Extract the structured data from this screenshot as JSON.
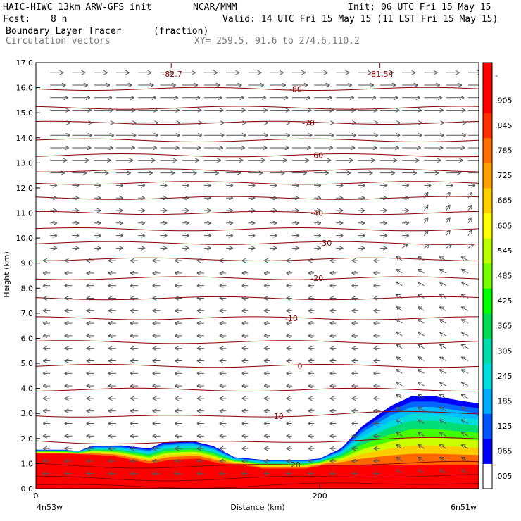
{
  "header": {
    "model": "HAIC-HIWC 13km ARW-GFS init",
    "org": "NCAR/MMM",
    "init": "Init: 06 UTC Fri 15 May 15",
    "fcst_label": "Fcst:",
    "fcst_value": "8 h",
    "valid": "Valid: 14 UTC Fri 15 May 15 (11 LST Fri 15 May 15)",
    "field1": "Boundary Layer Tracer",
    "field1_units": "(fraction)",
    "field2": "Circulation vectors",
    "xy": "XY= 259.5, 91.6 to 274.6,110.2"
  },
  "chart_data": {
    "type": "heatmap",
    "ylabel": "Height (km)",
    "xlabel": "Distance (km)",
    "x_left_label": "4n53w",
    "x_right_label": "6n51w",
    "ylim": [
      0,
      17
    ],
    "xlim": [
      0,
      312
    ],
    "y_ticks": [
      "0.0",
      "1.0",
      "2.0",
      "3.0",
      "4.0",
      "5.0",
      "6.0",
      "7.0",
      "8.0",
      "9.0",
      "10.0",
      "11.0",
      "12.0",
      "13.0",
      "14.0",
      "15.0",
      "16.0",
      "17.0"
    ],
    "x_ticks": [
      {
        "value": 0,
        "label": "0"
      },
      {
        "value": 200,
        "label": "200"
      }
    ],
    "colorbar": {
      "labels": [
        ".005",
        ".065",
        ".125",
        ".185",
        ".245",
        ".305",
        ".365",
        ".425",
        ".485",
        ".545",
        ".605",
        ".665",
        ".725",
        ".785",
        ".845",
        ".905",
        "-"
      ],
      "colors": [
        "#ffffff",
        "#0000ff",
        "#0055ff",
        "#00aaff",
        "#00dddd",
        "#00ddaa",
        "#00dd55",
        "#00ff00",
        "#77ff00",
        "#bbff00",
        "#ffff00",
        "#ffd000",
        "#ffa000",
        "#ff7000",
        "#ff3000",
        "#ff0000",
        "#ff0000"
      ]
    },
    "temperature_labels": [
      {
        "label": "-80",
        "x": 183,
        "y": 15.95
      },
      {
        "label": "-70",
        "x": 192,
        "y": 14.6
      },
      {
        "label": "-60",
        "x": 198,
        "y": 13.3
      },
      {
        "label": "-40",
        "x": 198,
        "y": 11.0
      },
      {
        "label": "-30",
        "x": 204,
        "y": 9.8
      },
      {
        "label": "-20",
        "x": 198,
        "y": 8.4
      },
      {
        "label": "-10",
        "x": 180,
        "y": 6.8
      },
      {
        "label": "0",
        "x": 186,
        "y": 4.9
      },
      {
        "label": "10",
        "x": 171,
        "y": 2.9
      },
      {
        "label": "20",
        "x": 183,
        "y": 0.95
      }
    ],
    "min_labels": [
      {
        "label": "-82.7",
        "x": 96,
        "y": 16.6
      },
      {
        "label": "-81.54",
        "x": 243,
        "y": 16.6
      }
    ],
    "tracer_top_km": [
      [
        0,
        1.55
      ],
      [
        20,
        1.55
      ],
      [
        30,
        1.5
      ],
      [
        40,
        1.7
      ],
      [
        60,
        1.72
      ],
      [
        80,
        1.6
      ],
      [
        90,
        1.85
      ],
      [
        110,
        1.9
      ],
      [
        125,
        1.7
      ],
      [
        140,
        1.25
      ],
      [
        160,
        1.15
      ],
      [
        190,
        1.15
      ],
      [
        200,
        1.2
      ],
      [
        215,
        1.6
      ],
      [
        230,
        2.5
      ],
      [
        250,
        3.3
      ],
      [
        265,
        3.7
      ],
      [
        280,
        3.7
      ],
      [
        300,
        3.5
      ],
      [
        312,
        3.4
      ]
    ],
    "tracer_core_km": [
      [
        0,
        1.4
      ],
      [
        20,
        1.4
      ],
      [
        40,
        1.35
      ],
      [
        55,
        1.3
      ],
      [
        80,
        1.0
      ],
      [
        95,
        1.15
      ],
      [
        115,
        1.2
      ],
      [
        130,
        1.0
      ],
      [
        145,
        0.95
      ],
      [
        160,
        0.8
      ],
      [
        190,
        0.8
      ],
      [
        205,
        0.95
      ],
      [
        215,
        0.95
      ],
      [
        312,
        0.95
      ]
    ]
  }
}
